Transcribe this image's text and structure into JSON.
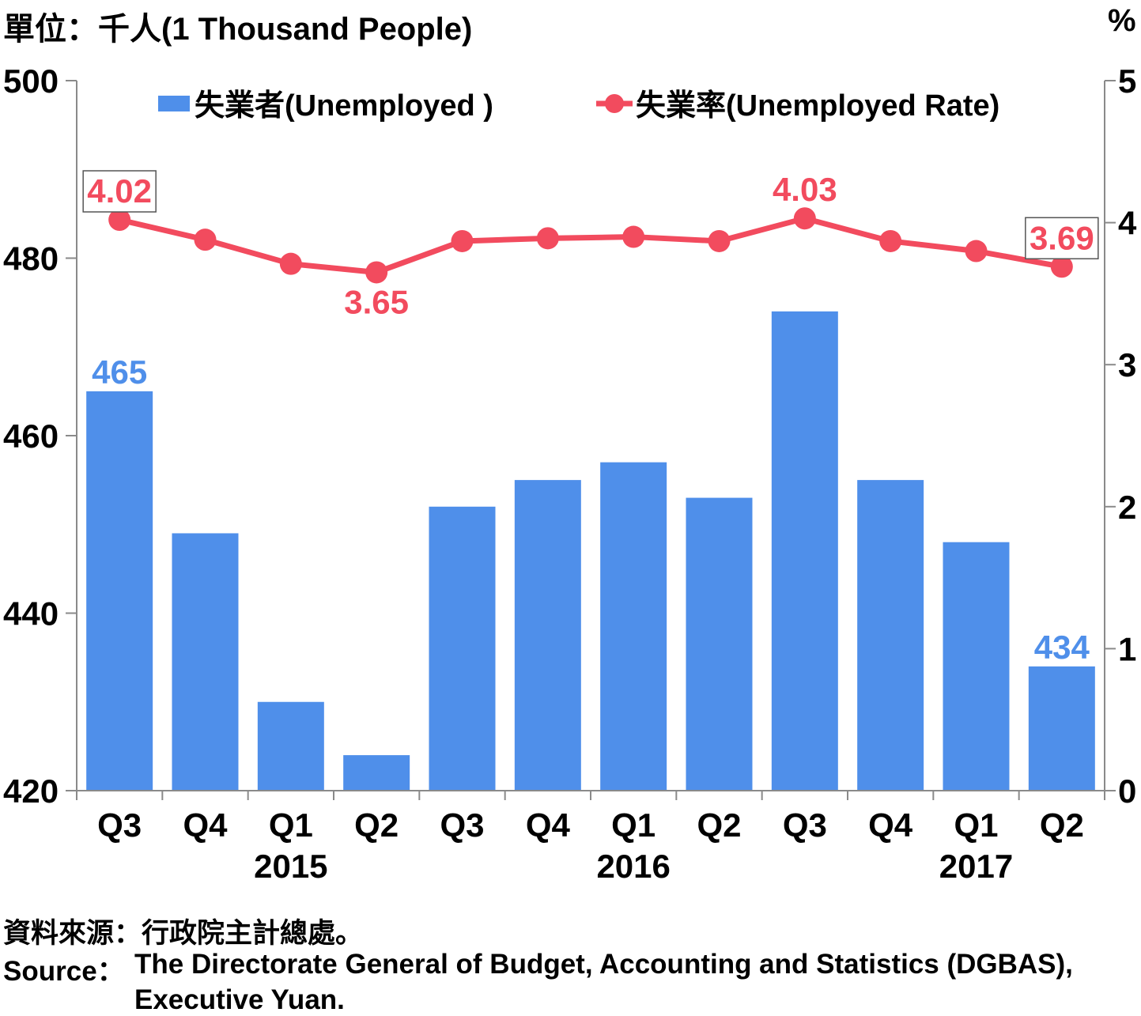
{
  "header": {
    "unit_left": "單位：千人(1 Thousand People)",
    "unit_right": "%"
  },
  "chart_data": {
    "type": "bar",
    "categories": [
      "Q3",
      "Q4",
      "Q1",
      "Q2",
      "Q3",
      "Q4",
      "Q1",
      "Q2",
      "Q3",
      "Q4",
      "Q1",
      "Q2"
    ],
    "year_labels": [
      {
        "label": "2015",
        "center_index": 2
      },
      {
        "label": "2016",
        "center_index": 6
      },
      {
        "label": "2017",
        "center_index": 10
      }
    ],
    "series": [
      {
        "name": "失業者(Unemployed )",
        "type": "bar",
        "axis": "left",
        "color": "#4f8fea",
        "values": [
          465,
          449,
          430,
          424,
          452,
          455,
          457,
          453,
          474,
          455,
          448,
          434
        ],
        "data_labels": [
          {
            "index": 0,
            "text": "465"
          },
          {
            "index": 11,
            "text": "434"
          }
        ]
      },
      {
        "name": "失業率(Unemployed Rate)",
        "type": "line",
        "axis": "right",
        "color": "#f24b5e",
        "values": [
          4.02,
          3.88,
          3.71,
          3.65,
          3.87,
          3.89,
          3.9,
          3.87,
          4.03,
          3.87,
          3.8,
          3.69
        ],
        "data_labels": [
          {
            "index": 0,
            "text": "4.02",
            "boxed": true,
            "position": "above"
          },
          {
            "index": 3,
            "text": "3.65",
            "boxed": false,
            "position": "below"
          },
          {
            "index": 8,
            "text": "4.03",
            "boxed": false,
            "position": "above"
          },
          {
            "index": 11,
            "text": "3.69",
            "boxed": true,
            "position": "above"
          }
        ]
      }
    ],
    "left_axis": {
      "min": 420,
      "max": 500,
      "ticks": [
        420,
        440,
        460,
        480,
        500
      ]
    },
    "right_axis": {
      "min": 0,
      "max": 5,
      "ticks": [
        0,
        1,
        2,
        3,
        4,
        5
      ]
    },
    "legend_position": "top",
    "grid": false,
    "title": "",
    "xlabel": "",
    "ylabel": ""
  },
  "footer": {
    "source_zh": "資料來源：行政院主計總處。",
    "source_en_label": "Source：",
    "source_en_line1": "The Directorate General of Budget, Accounting and Statistics (DGBAS),",
    "source_en_line2": "Executive Yuan."
  }
}
